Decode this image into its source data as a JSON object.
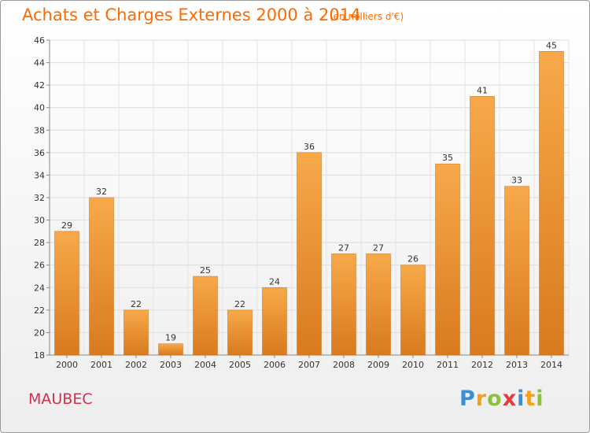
{
  "title": "Achats et Charges Externes 2000 à 2014",
  "subtitle": "(en milliers d'€)",
  "commune": "MAUBEC",
  "logo": {
    "p": "P",
    "r": "r",
    "o": "o",
    "x": "x",
    "i1": "i",
    "t": "t",
    "i2": "i"
  },
  "colors": {
    "accent": "#ff6a00",
    "bar_top": "#f7a94a",
    "bar_bottom": "#d97a1f",
    "commune": "#d0304c"
  },
  "chart_data": {
    "type": "bar",
    "categories": [
      "2000",
      "2001",
      "2002",
      "2003",
      "2004",
      "2005",
      "2006",
      "2007",
      "2008",
      "2009",
      "2010",
      "2011",
      "2012",
      "2013",
      "2014"
    ],
    "values": [
      29,
      32,
      22,
      19,
      25,
      22,
      24,
      36,
      27,
      27,
      26,
      35,
      41,
      33,
      45
    ],
    "data_labels": [
      "29",
      "32",
      "22",
      "19",
      "25",
      "22",
      "24",
      "36",
      "27",
      "27",
      "26",
      "35",
      "41",
      "33",
      "45"
    ],
    "ylim": [
      18,
      46
    ],
    "yticks": [
      18,
      20,
      22,
      24,
      26,
      28,
      30,
      32,
      34,
      36,
      38,
      40,
      42,
      44,
      46
    ],
    "grid": true,
    "legend": "none"
  }
}
